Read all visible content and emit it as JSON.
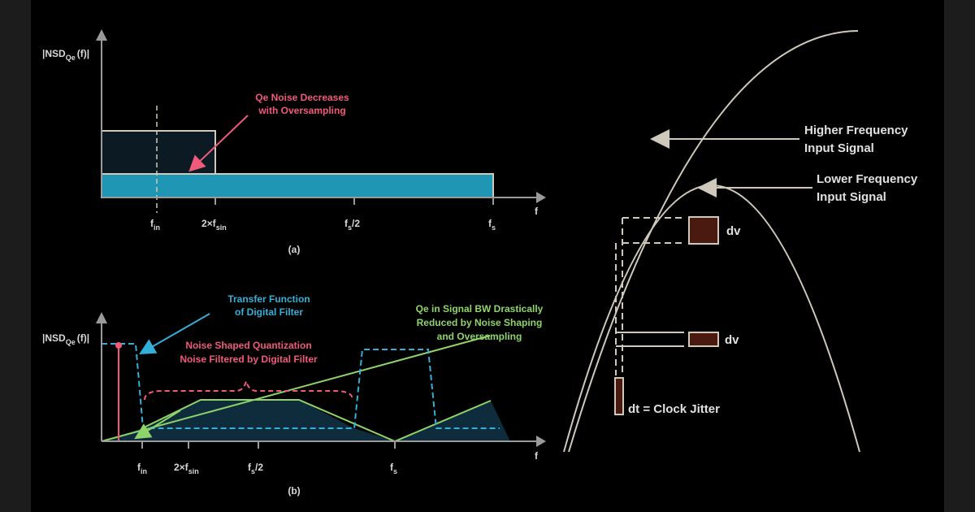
{
  "panel_a": {
    "y_axis_label": "|NSD",
    "y_axis_sub": "Qe",
    "y_axis_tail": "(f)|",
    "x_axis_label": "f",
    "ticks": {
      "fin": "f",
      "fin_sub": "in",
      "two_fsin": "2×f",
      "two_fsin_sub": "sin",
      "fs_half": "f",
      "fs_half_sub": "s",
      "fs_half_tail": "/2",
      "fs": "f",
      "fs_sub": "s"
    },
    "annotation_line1": "Qe Noise Decreases",
    "annotation_line2": "with Oversampling",
    "caption": "(a)"
  },
  "panel_b": {
    "y_axis_label": "|NSD",
    "y_axis_sub": "Qe",
    "y_axis_tail": "(f)|",
    "x_axis_label": "f",
    "ticks": {
      "fin": "f",
      "fin_sub": "in",
      "two_fsin": "2×f",
      "two_fsin_sub": "sin",
      "fs_half": "f",
      "fs_half_sub": "s",
      "fs_half_tail": "/2",
      "fs": "f",
      "fs_sub": "s"
    },
    "transfer_line1": "Transfer Function",
    "transfer_line2": "of Digital Filter",
    "noise_line1": "Noise Shaped Quantization",
    "noise_line2": "Noise Filtered by Digital Filter",
    "qe_line1": "Qe in Signal BW Drastically",
    "qe_line2": "Reduced by Noise Shaping",
    "qe_line3": "and Oversampling",
    "caption": "(b)"
  },
  "jitter": {
    "higher_line1": "Higher Frequency",
    "higher_line2": "Input Signal",
    "lower_line1": "Lower Frequency",
    "lower_line2": "Input Signal",
    "dv_top": "dv",
    "dv_bottom": "dv",
    "dt_label": "dt = Clock Jitter"
  },
  "colors": {
    "background": "#000000",
    "teal_fill": "#1e96b4",
    "dark_fill": "#0c1a24",
    "pink": "#ef5a7b",
    "teal_line": "#34b0d8",
    "green": "#8ed46a",
    "curve": "#cfc9bb",
    "jitter_box": "#4a1a10"
  }
}
